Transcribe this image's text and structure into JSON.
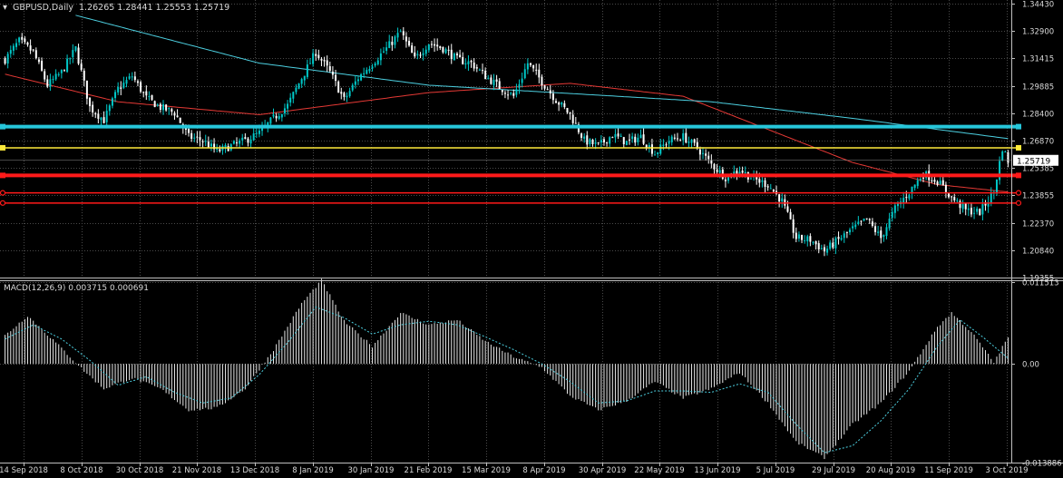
{
  "chart_data": [
    {
      "type": "candlestick",
      "symbol": "GBPUSD,Daily",
      "ohlc": "1.26265 1.28441 1.25553 1.25719",
      "header_text": "GBPUSD,Daily  1.26265 1.28441 1.25553 1.25719",
      "ylim": [
        1.1935,
        1.3443
      ],
      "y_ticks": [
        "1.34430",
        "1.32900",
        "1.31415",
        "1.29885",
        "1.28400",
        "1.26870",
        "1.25385",
        "1.23855",
        "1.22370",
        "1.20840",
        "1.19355"
      ],
      "current_price": "1.25719",
      "x_ticks": [
        "14 Sep 2018",
        "8 Oct 2018",
        "30 Oct 2018",
        "21 Nov 2018",
        "13 Dec 2018",
        "8 Jan 2019",
        "30 Jan 2019",
        "21 Feb 2019",
        "15 Mar 2019",
        "8 Apr 2019",
        "30 Apr 2019",
        "22 May 2019",
        "13 Jun 2019",
        "5 Jul 2019",
        "29 Jul 2019",
        "20 Aug 2019",
        "11 Sep 2019",
        "3 Oct 2019"
      ],
      "close_anchors": [
        [
          0,
          1.312
        ],
        [
          5,
          1.322
        ],
        [
          10,
          1.316
        ],
        [
          15,
          1.298
        ],
        [
          20,
          1.305
        ],
        [
          25,
          1.318
        ],
        [
          30,
          1.286
        ],
        [
          35,
          1.279
        ],
        [
          40,
          1.296
        ],
        [
          45,
          1.303
        ],
        [
          50,
          1.291
        ],
        [
          55,
          1.286
        ],
        [
          60,
          1.283
        ],
        [
          65,
          1.27
        ],
        [
          70,
          1.268
        ],
        [
          75,
          1.262
        ],
        [
          80,
          1.265
        ],
        [
          85,
          1.268
        ],
        [
          90,
          1.272
        ],
        [
          95,
          1.28
        ],
        [
          100,
          1.287
        ],
        [
          105,
          1.302
        ],
        [
          110,
          1.316
        ],
        [
          115,
          1.305
        ],
        [
          120,
          1.29
        ],
        [
          125,
          1.302
        ],
        [
          130,
          1.31
        ],
        [
          135,
          1.318
        ],
        [
          140,
          1.327
        ],
        [
          145,
          1.312
        ],
        [
          150,
          1.321
        ],
        [
          155,
          1.318
        ],
        [
          160,
          1.312
        ],
        [
          165,
          1.31
        ],
        [
          170,
          1.303
        ],
        [
          175,
          1.297
        ],
        [
          180,
          1.292
        ],
        [
          185,
          1.31
        ],
        [
          190,
          1.3
        ],
        [
          195,
          1.29
        ],
        [
          200,
          1.282
        ],
        [
          205,
          1.268
        ],
        [
          210,
          1.265
        ],
        [
          215,
          1.271
        ],
        [
          220,
          1.267
        ],
        [
          225,
          1.27
        ],
        [
          230,
          1.261
        ],
        [
          235,
          1.268
        ],
        [
          240,
          1.27
        ],
        [
          245,
          1.264
        ],
        [
          250,
          1.255
        ],
        [
          255,
          1.248
        ],
        [
          260,
          1.252
        ],
        [
          265,
          1.247
        ],
        [
          270,
          1.244
        ],
        [
          275,
          1.235
        ],
        [
          280,
          1.215
        ],
        [
          285,
          1.214
        ],
        [
          290,
          1.208
        ],
        [
          295,
          1.214
        ],
        [
          300,
          1.22
        ],
        [
          305,
          1.225
        ],
        [
          310,
          1.215
        ],
        [
          315,
          1.231
        ],
        [
          320,
          1.24
        ],
        [
          325,
          1.25
        ],
        [
          330,
          1.246
        ],
        [
          335,
          1.237
        ],
        [
          340,
          1.23
        ],
        [
          345,
          1.229
        ],
        [
          350,
          1.24
        ],
        [
          353,
          1.264
        ],
        [
          355,
          1.257
        ]
      ],
      "moving_averages": [
        {
          "color": "#e53935",
          "anchors": [
            [
              0,
              1.304
            ],
            [
              40,
              1.289
            ],
            [
              90,
              1.282
            ],
            [
              150,
              1.294
            ],
            [
              200,
              1.299
            ],
            [
              240,
              1.292
            ],
            [
              270,
              1.274
            ],
            [
              300,
              1.256
            ],
            [
              330,
              1.244
            ],
            [
              355,
              1.24
            ]
          ]
        },
        {
          "color": "#4dd0e1",
          "anchors": [
            [
              25,
              1.336
            ],
            [
              90,
              1.31
            ],
            [
              150,
              1.298
            ],
            [
              250,
              1.289
            ],
            [
              300,
              1.28
            ],
            [
              330,
              1.274
            ],
            [
              355,
              1.269
            ]
          ]
        }
      ],
      "horizontal_levels": [
        {
          "value": 1.2755,
          "color": "#26c6da",
          "width": 4,
          "marker": "square"
        },
        {
          "value": 1.264,
          "color": "#ffeb3b",
          "width": 1.5,
          "marker": "square"
        },
        {
          "value": 1.249,
          "color": "#ff1a1a",
          "width": 4,
          "marker": "square"
        },
        {
          "value": 1.2395,
          "color": "#ff1a1a",
          "width": 1.5,
          "marker": "ring"
        },
        {
          "value": 1.234,
          "color": "#ff1a1a",
          "width": 1.5,
          "marker": "ring"
        }
      ],
      "colors": {
        "background": "#000000",
        "grid": "#4a4a4a",
        "axis": "#bfbfbf",
        "text": "#d9d9d9",
        "candle": "#ffffff",
        "bull": "#00c8c8"
      }
    },
    {
      "type": "histogram",
      "title": "MACD(12,26,9) 0.003715 0.000691",
      "ylim": [
        -0.013886,
        0.011513
      ],
      "y_ticks": [
        "0.011513",
        "0.00",
        "-0.013886"
      ],
      "histogram_anchors": [
        [
          0,
          0.004
        ],
        [
          8,
          0.0068
        ],
        [
          18,
          0.003
        ],
        [
          28,
          -0.001
        ],
        [
          35,
          -0.0035
        ],
        [
          45,
          -0.002
        ],
        [
          55,
          -0.0035
        ],
        [
          65,
          -0.0065
        ],
        [
          75,
          -0.0062
        ],
        [
          85,
          -0.0035
        ],
        [
          95,
          0.002
        ],
        [
          105,
          0.0085
        ],
        [
          112,
          0.0118
        ],
        [
          120,
          0.006
        ],
        [
          130,
          0.0025
        ],
        [
          140,
          0.0072
        ],
        [
          150,
          0.0055
        ],
        [
          160,
          0.0062
        ],
        [
          170,
          0.0032
        ],
        [
          180,
          0.001
        ],
        [
          190,
          -0.0005
        ],
        [
          200,
          -0.0045
        ],
        [
          210,
          -0.0065
        ],
        [
          220,
          -0.0052
        ],
        [
          230,
          -0.0025
        ],
        [
          240,
          -0.0048
        ],
        [
          250,
          -0.0035
        ],
        [
          260,
          -0.0012
        ],
        [
          270,
          -0.0055
        ],
        [
          280,
          -0.011
        ],
        [
          290,
          -0.0132
        ],
        [
          300,
          -0.0085
        ],
        [
          310,
          -0.0055
        ],
        [
          320,
          -0.001
        ],
        [
          330,
          0.0052
        ],
        [
          335,
          0.0072
        ],
        [
          342,
          0.0045
        ],
        [
          350,
          0.0002
        ],
        [
          355,
          0.0038
        ]
      ],
      "signal_anchors": [
        [
          0,
          0.0035
        ],
        [
          10,
          0.0055
        ],
        [
          20,
          0.0035
        ],
        [
          30,
          0.0005
        ],
        [
          40,
          -0.003
        ],
        [
          50,
          -0.0018
        ],
        [
          60,
          -0.004
        ],
        [
          70,
          -0.0055
        ],
        [
          80,
          -0.0048
        ],
        [
          90,
          -0.0015
        ],
        [
          100,
          0.003
        ],
        [
          110,
          0.008
        ],
        [
          120,
          0.0065
        ],
        [
          130,
          0.0042
        ],
        [
          140,
          0.0055
        ],
        [
          150,
          0.006
        ],
        [
          160,
          0.0055
        ],
        [
          170,
          0.0038
        ],
        [
          180,
          0.002
        ],
        [
          190,
          0.0
        ],
        [
          200,
          -0.0025
        ],
        [
          210,
          -0.0055
        ],
        [
          220,
          -0.0052
        ],
        [
          230,
          -0.0038
        ],
        [
          240,
          -0.0038
        ],
        [
          250,
          -0.004
        ],
        [
          260,
          -0.0028
        ],
        [
          270,
          -0.004
        ],
        [
          280,
          -0.0085
        ],
        [
          290,
          -0.0125
        ],
        [
          300,
          -0.0115
        ],
        [
          310,
          -0.008
        ],
        [
          320,
          -0.0035
        ],
        [
          330,
          0.0025
        ],
        [
          338,
          0.0062
        ],
        [
          346,
          0.0038
        ],
        [
          355,
          0.0008
        ]
      ],
      "colors": {
        "histogram": "#e8e8e8",
        "signal": "#4dd0e1"
      }
    }
  ]
}
